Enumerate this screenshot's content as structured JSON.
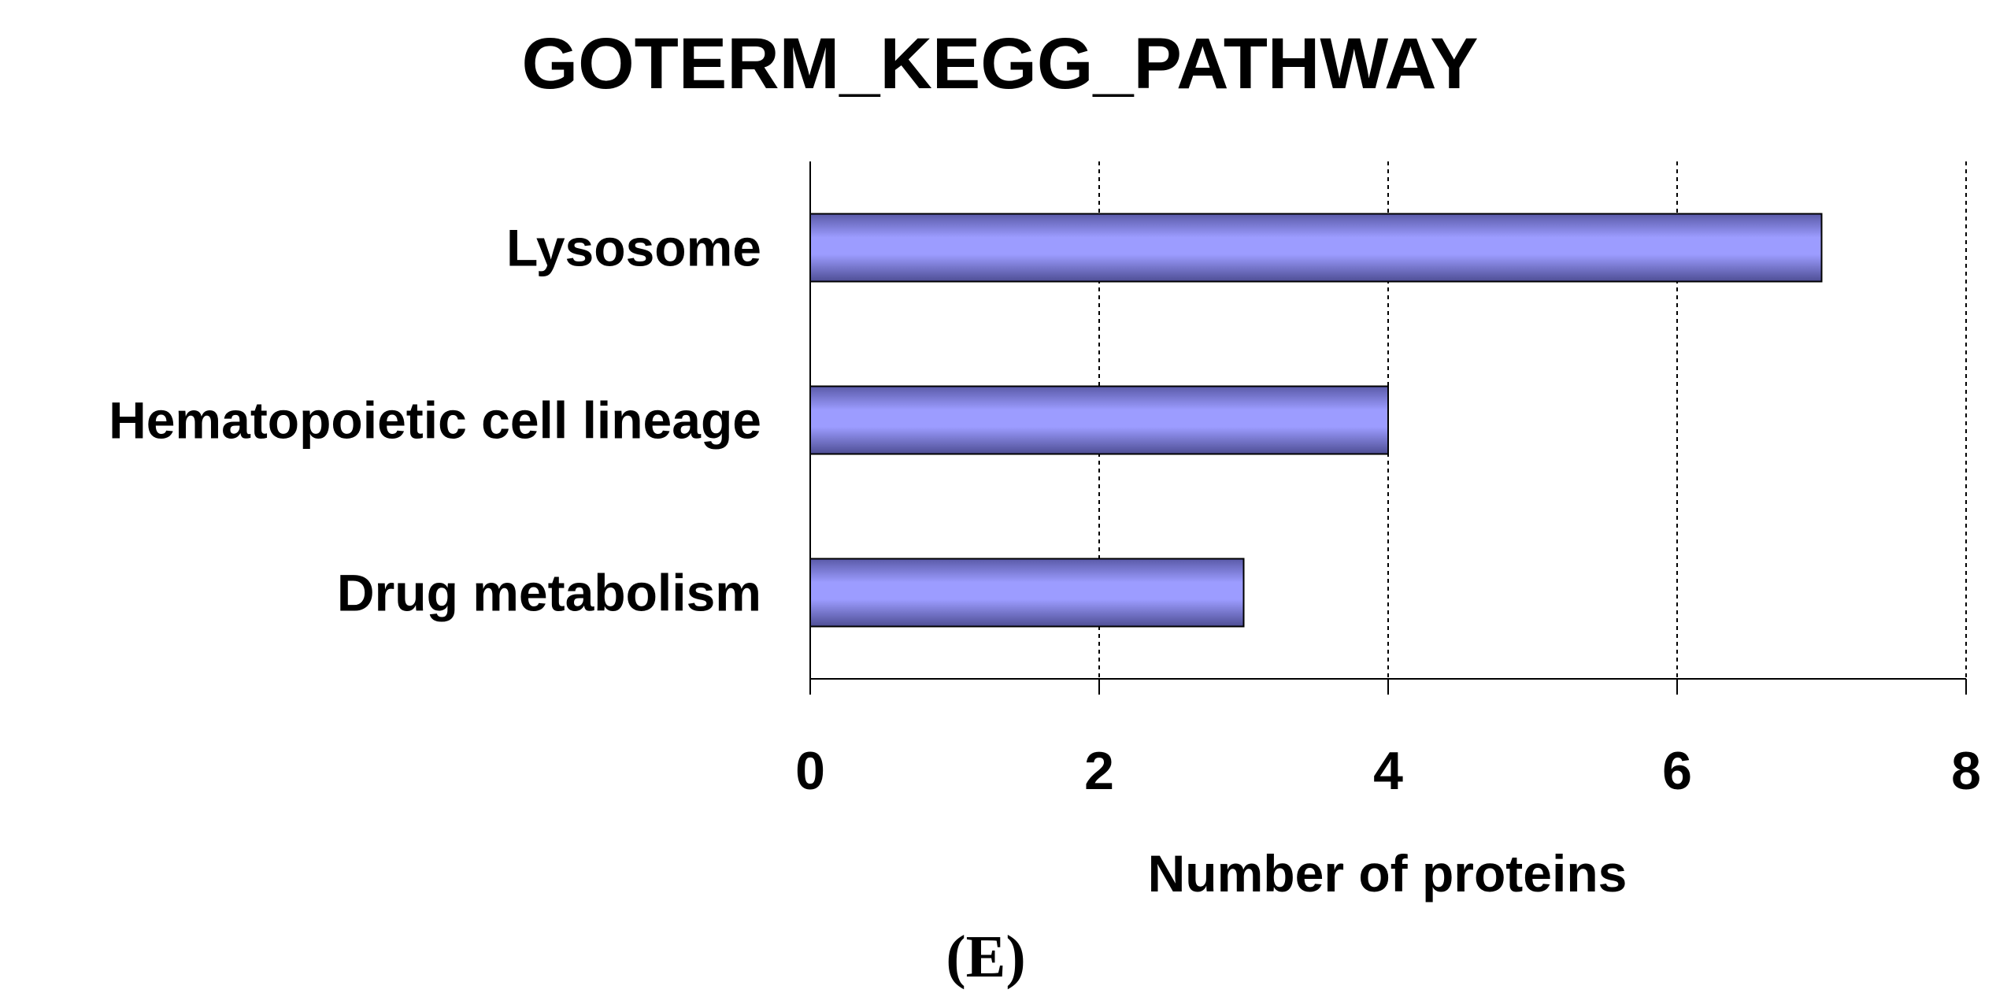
{
  "chart_data": {
    "type": "bar",
    "orientation": "horizontal",
    "title": "GOTERM_KEGG_PATHWAY",
    "categories": [
      "Lysosome",
      "Hematopoietic cell lineage",
      "Drug metabolism"
    ],
    "values": [
      7,
      4,
      3
    ],
    "xlabel": "Number of proteins",
    "ylabel": "",
    "xlim": [
      0,
      8
    ],
    "xticks": [
      "0",
      "2",
      "4",
      "6",
      "8"
    ],
    "grid": "vertical dashed",
    "bar_color": "#9999ff",
    "bar_edge_color": "#000000"
  },
  "panel_label": "(E)"
}
